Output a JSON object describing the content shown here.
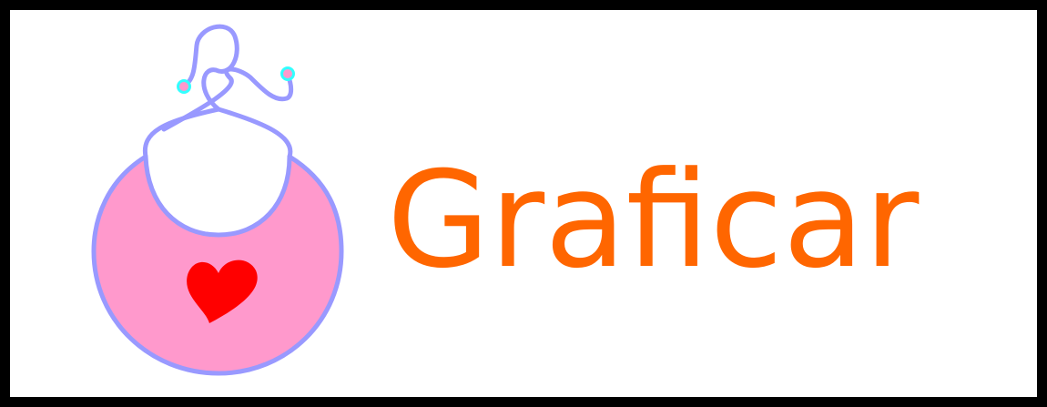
{
  "brand": {
    "name": "Graficar",
    "text_color": "#ff6600",
    "frame_color": "#000000"
  },
  "logo_icon": {
    "icon": "baby-bib-with-heart-icon",
    "bib_color": "#ff99cc",
    "outline_color": "#9999ff",
    "heart_color": "#ff0000",
    "string_end_color": "#ff99cc",
    "string_end_ring_color": "#33ffff"
  }
}
